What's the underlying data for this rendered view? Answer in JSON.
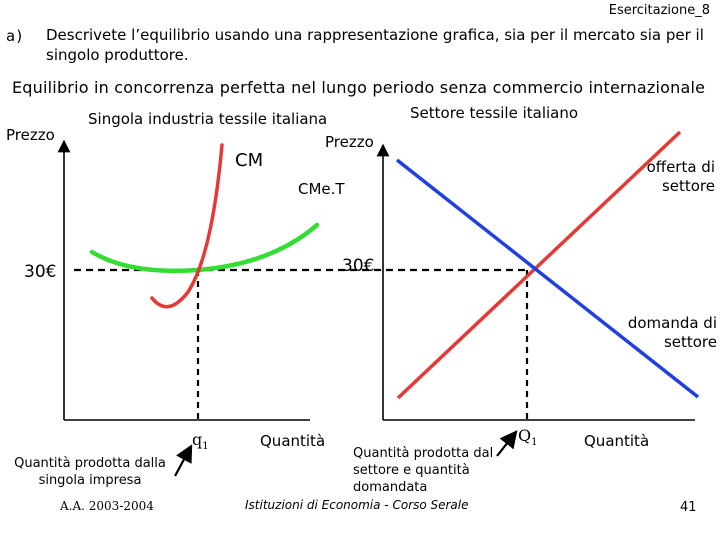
{
  "header": {
    "slide_label": "Esercitazione_8",
    "question_letter": "a)",
    "question_text": "Descrivete l’equilibrio usando una rappresentazione grafica, sia per il mercato sia per il singolo produttore.",
    "heading": "Equilibrio in concorrenza perfetta nel lungo periodo senza commercio internazionale"
  },
  "left_panel": {
    "title": "Singola industria tessile italiana",
    "y_axis_label": "Prezzo",
    "x_axis_label": "Quantità",
    "q_label": "q",
    "q_sub": "1",
    "cm_label": "CM",
    "cmet_label": "CMe.T",
    "price_label": "30€",
    "quantity_note": "Quantità prodotta dalla singola impresa",
    "colors": {
      "cm": "#e53935",
      "cmet": "#33dd33"
    }
  },
  "right_panel": {
    "title": "Settore tessile italiano",
    "y_axis_label": "Prezzo",
    "x_axis_label": "Quantità",
    "q_label": "Q",
    "q_sub": "1",
    "price_label": "30€",
    "supply_label": "offerta di settore",
    "demand_label": "domanda di settore",
    "quantity_note": "Quantità prodotta dal settore e quantità domandata",
    "colors": {
      "supply": "#e53935",
      "demand": "#1f3fe0"
    }
  },
  "footer": {
    "year": "A.A. 2003-2004",
    "course": "Istituzioni di Economia - Corso Serale",
    "page_number": "41"
  }
}
